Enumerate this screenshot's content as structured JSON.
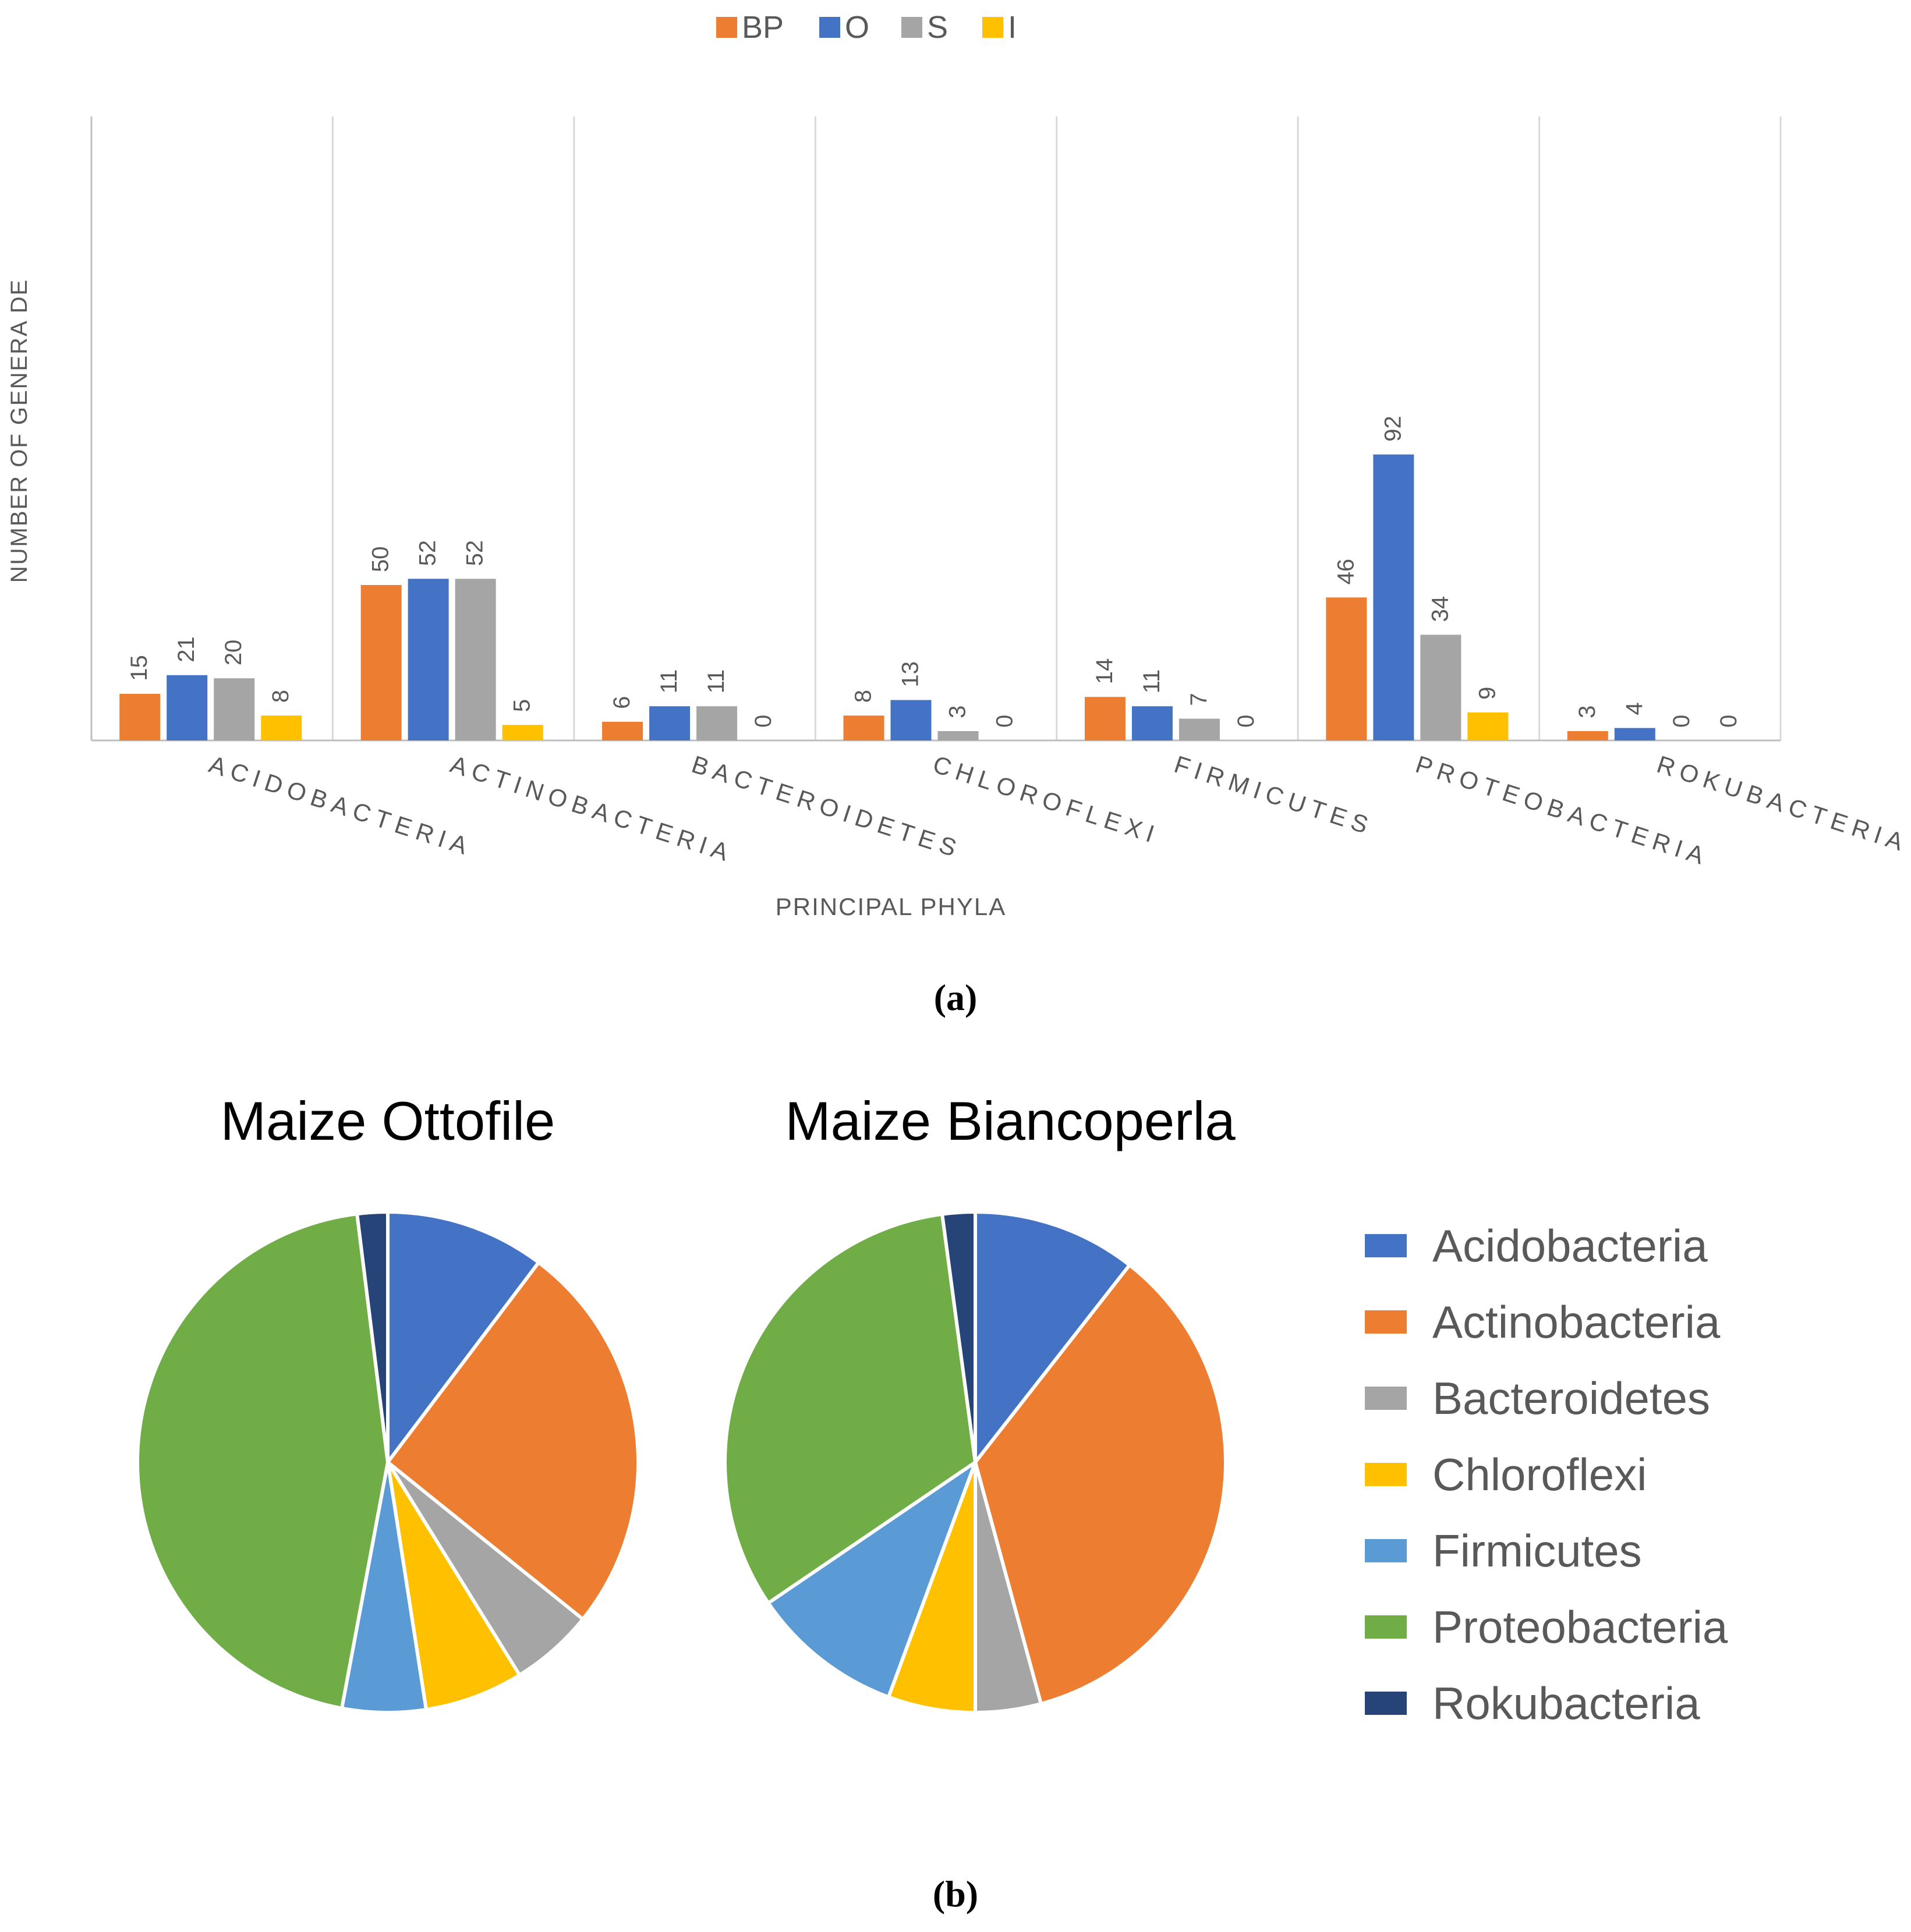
{
  "chart_data": [
    {
      "type": "bar",
      "panel_label": "(a)",
      "title": "",
      "xlabel": "PRINCIPAL PHYLA",
      "ylabel": "NUMBER OF GENERA DE",
      "categories": [
        "ACIDOBACTERIA",
        "ACTINOBACTERIA",
        "BACTEROIDETES",
        "CHLOROFLEXI",
        "FIRMICUTES",
        "PROTEOBACTERIA",
        "ROKUBACTERIA"
      ],
      "series": [
        {
          "name": "BP",
          "color": "#ED7D31",
          "values": [
            15,
            50,
            6,
            8,
            14,
            46,
            3
          ]
        },
        {
          "name": "O",
          "color": "#4472C4",
          "values": [
            21,
            52,
            11,
            13,
            11,
            92,
            4
          ]
        },
        {
          "name": "S",
          "color": "#A5A5A5",
          "values": [
            20,
            52,
            11,
            3,
            7,
            34,
            0
          ]
        },
        {
          "name": "I",
          "color": "#FFC000",
          "values": [
            8,
            5,
            0,
            0,
            0,
            9,
            0
          ]
        }
      ],
      "ylim": [
        0,
        100
      ],
      "grid": "vertical category separators",
      "legend": "top-center",
      "data_labels": true
    },
    {
      "type": "pie",
      "panel_label": "(b)",
      "charts": [
        {
          "title": "Maize Ottofile",
          "values": [
            21,
            52,
            11,
            13,
            11,
            92,
            4
          ]
        },
        {
          "title": "Maize Biancoperla",
          "values": [
            15,
            50,
            6,
            8,
            14,
            46,
            3
          ]
        }
      ],
      "labels": [
        "Acidobacteria",
        "Actinobacteria",
        "Bacteroidetes",
        "Chloroflexi",
        "Firmicutes",
        "Proteobacteria",
        "Rokubacteria"
      ],
      "colors": [
        "#4472C4",
        "#ED7D31",
        "#A5A5A5",
        "#FFC000",
        "#5B9BD5",
        "#70AD47",
        "#264478"
      ],
      "legend": "right"
    }
  ]
}
